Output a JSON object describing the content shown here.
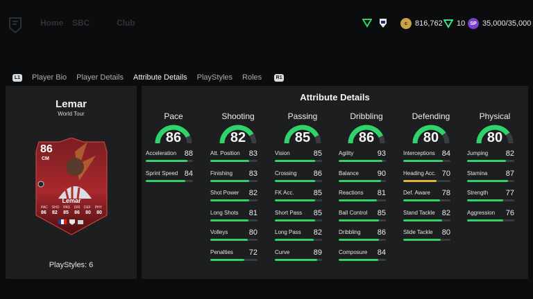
{
  "topbar": {
    "nav_ghost": [
      "Home",
      "SBC",
      "Club"
    ],
    "currencies": [
      {
        "icon": "fut-coin-icon",
        "value": "816,762"
      },
      {
        "icon": "fc-points-icon",
        "value": "10"
      },
      {
        "icon": "sp-icon",
        "value": "35,000/35,000"
      }
    ]
  },
  "tabs": {
    "left_hint": "L1",
    "right_hint": "R1",
    "items": [
      "Player Bio",
      "Player Details",
      "Attribute Details",
      "PlayStyles",
      "Roles"
    ],
    "active": "Attribute Details"
  },
  "player": {
    "name": "Lemar",
    "subtitle": "World Tour",
    "playstyles_label": "PlayStyles: 6",
    "card": {
      "rating": "86",
      "position": "CM",
      "name": "Lemar",
      "stat_labels": [
        "PAC",
        "SHO",
        "PAS",
        "DRI",
        "DEF",
        "PHY"
      ],
      "stat_values": [
        "86",
        "82",
        "85",
        "86",
        "80",
        "80"
      ]
    }
  },
  "attributes": {
    "title": "Attribute Details",
    "categories": [
      {
        "name": "Pace",
        "value": "86",
        "level": 86,
        "stats": [
          {
            "label": "Acceleration",
            "value": "88",
            "level": 88
          },
          {
            "label": "Sprint Speed",
            "value": "84",
            "level": 84
          }
        ]
      },
      {
        "name": "Shooting",
        "value": "82",
        "level": 82,
        "stats": [
          {
            "label": "Att. Position",
            "value": "83",
            "level": 83
          },
          {
            "label": "Finishing",
            "value": "83",
            "level": 83
          },
          {
            "label": "Shot Power",
            "value": "82",
            "level": 82
          },
          {
            "label": "Long Shots",
            "value": "81",
            "level": 81
          },
          {
            "label": "Volleys",
            "value": "80",
            "level": 80
          },
          {
            "label": "Penalties",
            "value": "72",
            "level": 72
          }
        ]
      },
      {
        "name": "Passing",
        "value": "85",
        "level": 85,
        "stats": [
          {
            "label": "Vision",
            "value": "85",
            "level": 85
          },
          {
            "label": "Crossing",
            "value": "86",
            "level": 86
          },
          {
            "label": "FK Acc.",
            "value": "85",
            "level": 85
          },
          {
            "label": "Short Pass",
            "value": "85",
            "level": 85
          },
          {
            "label": "Long Pass",
            "value": "82",
            "level": 82
          },
          {
            "label": "Curve",
            "value": "89",
            "level": 89
          }
        ]
      },
      {
        "name": "Dribbling",
        "value": "86",
        "level": 86,
        "stats": [
          {
            "label": "Agility",
            "value": "93",
            "level": 93
          },
          {
            "label": "Balance",
            "value": "90",
            "level": 90
          },
          {
            "label": "Reactions",
            "value": "81",
            "level": 81
          },
          {
            "label": "Ball Control",
            "value": "85",
            "level": 85
          },
          {
            "label": "Dribbling",
            "value": "86",
            "level": 86
          },
          {
            "label": "Composure",
            "value": "84",
            "level": 84
          }
        ]
      },
      {
        "name": "Defending",
        "value": "80",
        "level": 80,
        "stats": [
          {
            "label": "Interceptions",
            "value": "84",
            "level": 84
          },
          {
            "label": "Heading Acc.",
            "value": "70",
            "level": 70,
            "color": "#e2b431"
          },
          {
            "label": "Def. Aware",
            "value": "78",
            "level": 78
          },
          {
            "label": "Stand Tackle",
            "value": "82",
            "level": 82
          },
          {
            "label": "Slide Tackle",
            "value": "80",
            "level": 80
          }
        ]
      },
      {
        "name": "Physical",
        "value": "80",
        "level": 80,
        "stats": [
          {
            "label": "Jumping",
            "value": "82",
            "level": 82
          },
          {
            "label": "Stamina",
            "value": "87",
            "level": 87
          },
          {
            "label": "Strength",
            "value": "77",
            "level": 77
          },
          {
            "label": "Aggression",
            "value": "76",
            "level": 76
          }
        ]
      }
    ]
  },
  "colors": {
    "accent_green": "#2fd36a",
    "amber": "#e2b431",
    "panel": "#1c1e20"
  }
}
